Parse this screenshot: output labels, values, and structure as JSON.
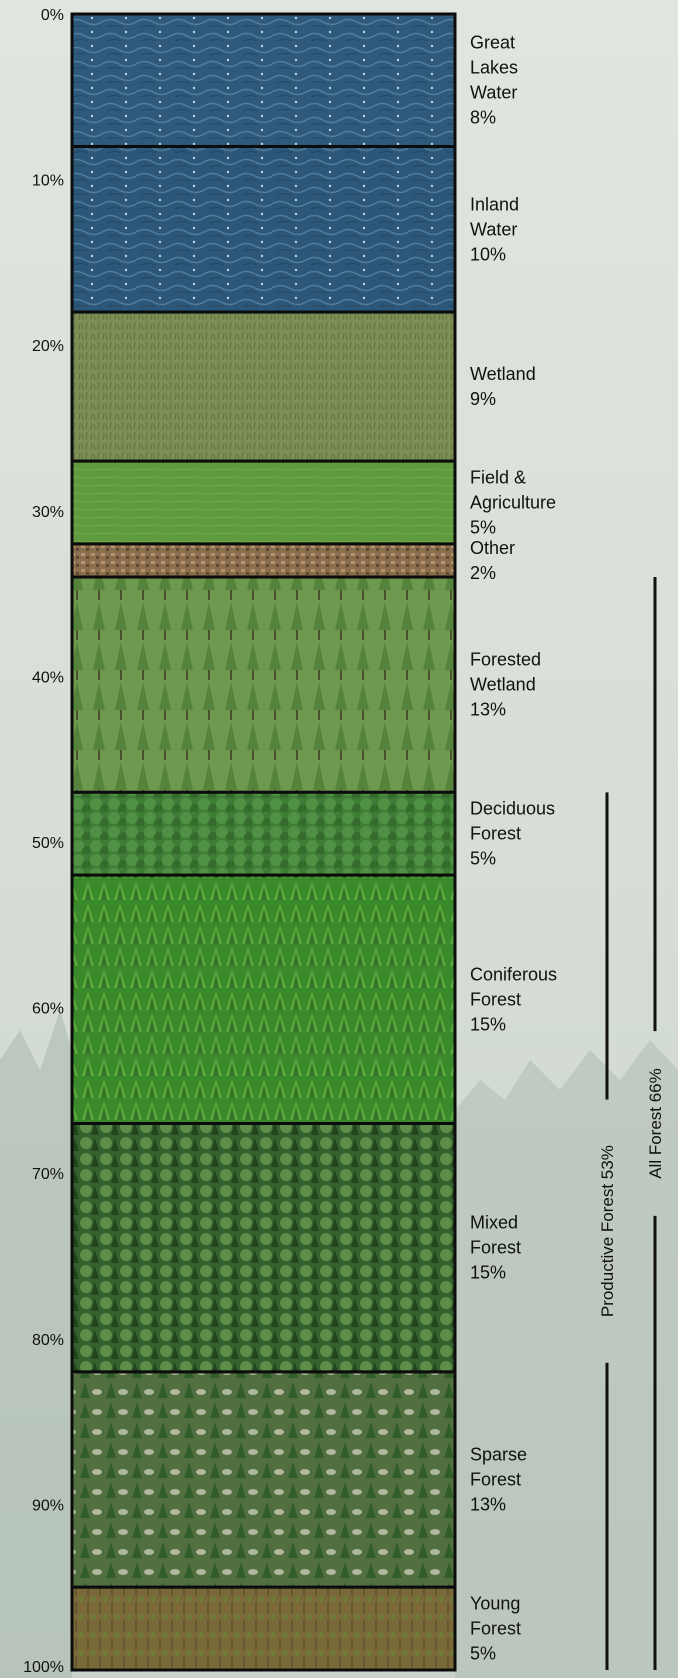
{
  "chart_data": {
    "type": "bar",
    "orientation": "vertical-stacked",
    "ylim": [
      0,
      100
    ],
    "y_ticks": [
      "0%",
      "10%",
      "20%",
      "30%",
      "40%",
      "50%",
      "60%",
      "70%",
      "80%",
      "90%",
      "100%"
    ],
    "segments": [
      {
        "label_lines": [
          "Great",
          "Lakes",
          "Water",
          "8%"
        ],
        "value": 8,
        "color": "#2f5a7c",
        "texture": "water"
      },
      {
        "label_lines": [
          "Inland",
          "Water",
          "10%"
        ],
        "value": 10,
        "color": "#2d5778",
        "texture": "water"
      },
      {
        "label_lines": [
          "Wetland",
          "9%"
        ],
        "value": 9,
        "color": "#7d8f57",
        "texture": "wetland"
      },
      {
        "label_lines": [
          "Field &",
          "Agriculture",
          "5%"
        ],
        "value": 5,
        "color": "#5f9a3f",
        "texture": "field"
      },
      {
        "label_lines": [
          "Other",
          "2%"
        ],
        "value": 2,
        "color": "#8a6e4e",
        "texture": "other"
      },
      {
        "label_lines": [
          "Forested",
          "Wetland",
          "13%"
        ],
        "value": 13,
        "color": "#6e9a4f",
        "texture": "sparse-trees"
      },
      {
        "label_lines": [
          "Deciduous",
          "Forest",
          "5%"
        ],
        "value": 5,
        "color": "#3f7d36",
        "texture": "canopy"
      },
      {
        "label_lines": [
          "Coniferous",
          "Forest",
          "15%"
        ],
        "value": 15,
        "color": "#3a8a2c",
        "texture": "conifer"
      },
      {
        "label_lines": [
          "Mixed",
          "Forest",
          "15%"
        ],
        "value": 15,
        "color": "#35612f",
        "texture": "mixed"
      },
      {
        "label_lines": [
          "Sparse",
          "Forest",
          "13%"
        ],
        "value": 13,
        "color": "#52703f",
        "texture": "sparse"
      },
      {
        "label_lines": [
          "Young",
          "Forest",
          "5%"
        ],
        "value": 5,
        "color": "#7a6a3a",
        "texture": "young"
      }
    ],
    "brackets": [
      {
        "label": "Productive Forest 53%",
        "start": 47,
        "end": 100
      },
      {
        "label": "All Forest 66%",
        "start": 34,
        "end": 100
      }
    ]
  }
}
